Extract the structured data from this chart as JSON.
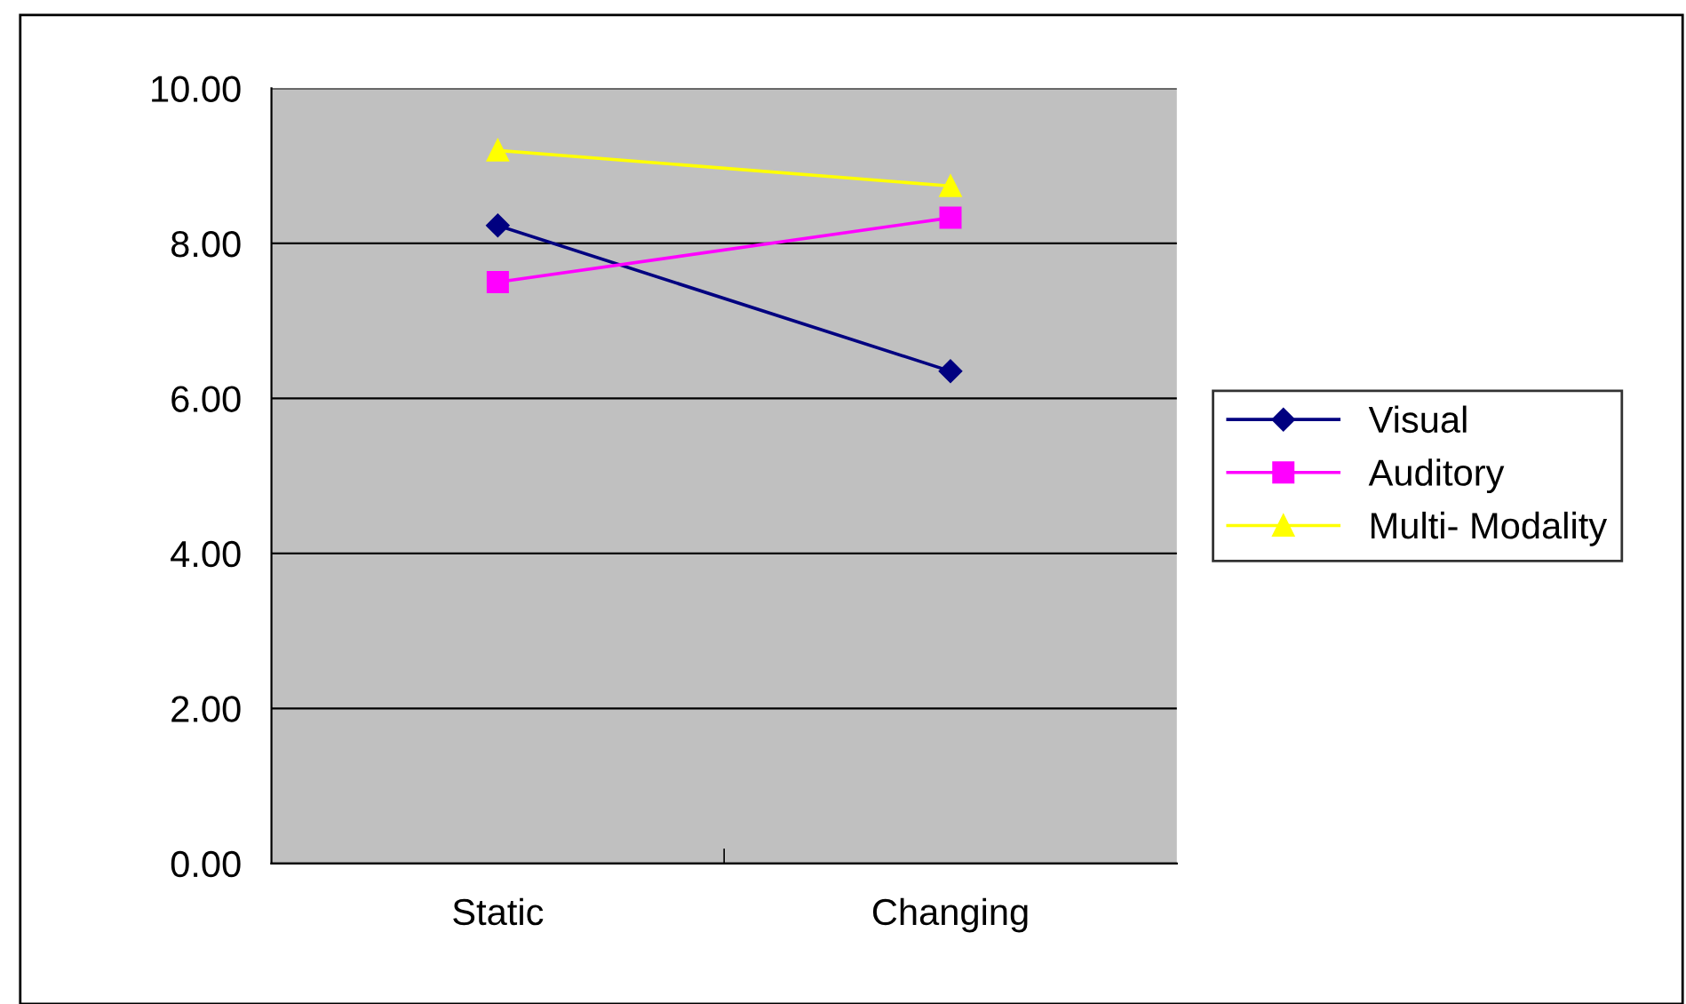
{
  "chart_data": {
    "type": "line",
    "categories": [
      "Static",
      "Changing"
    ],
    "series": [
      {
        "name": "Visual",
        "color": "#000080",
        "values": [
          8.23,
          6.35
        ],
        "marker": "diamond"
      },
      {
        "name": "Auditory",
        "color": "#ff00ff",
        "values": [
          7.5,
          8.33
        ],
        "marker": "square"
      },
      {
        "name": "Multi- Modality",
        "color": "#ffff00",
        "values": [
          9.2,
          8.74
        ],
        "marker": "triangle"
      }
    ],
    "ylim": [
      0,
      10
    ],
    "yticks": [
      {
        "value": 0,
        "label": "0.00"
      },
      {
        "value": 2,
        "label": "2.00"
      },
      {
        "value": 4,
        "label": "4.00"
      },
      {
        "value": 6,
        "label": "6.00"
      },
      {
        "value": 8,
        "label": "8.00"
      },
      {
        "value": 10,
        "label": "10.00"
      }
    ],
    "grid": "y",
    "legend": "right"
  }
}
